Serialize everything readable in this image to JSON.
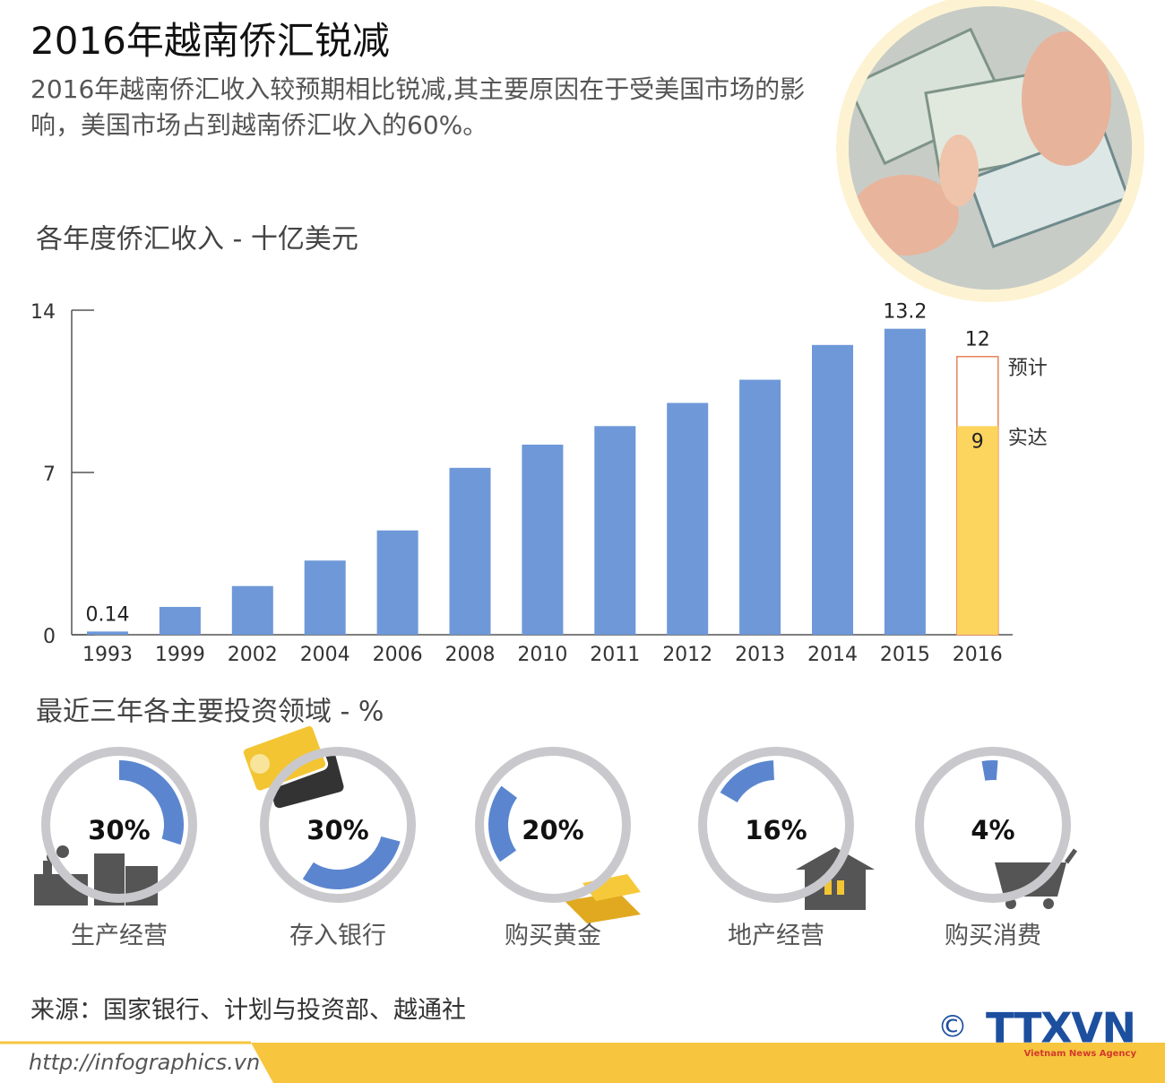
{
  "header": {
    "title": "2016年越南侨汇锐减",
    "subtitle": "2016年越南侨汇收入较预期相比锐减,其主要原因在于受美国市场的影响，美国市场占到越南侨汇收入的60%。"
  },
  "chart_data": [
    {
      "type": "bar",
      "title": "各年度侨汇收入 - 十亿美元",
      "categories": [
        "1993",
        "1999",
        "2002",
        "2004",
        "2006",
        "2008",
        "2010",
        "2011",
        "2012",
        "2013",
        "2014",
        "2015",
        "2016"
      ],
      "series": [
        {
          "color": "#6e98d8",
          "values": [
            0.14,
            1.2,
            2.1,
            3.2,
            4.5,
            7.2,
            8.2,
            9.0,
            10.0,
            11.0,
            12.5,
            13.2,
            null
          ],
          "value_labels": [
            "0.14",
            null,
            null,
            null,
            null,
            null,
            null,
            null,
            null,
            null,
            null,
            "13.2",
            null
          ]
        },
        {
          "name": "实达",
          "color": "#fcd55f",
          "values": [
            null,
            null,
            null,
            null,
            null,
            null,
            null,
            null,
            null,
            null,
            null,
            null,
            9
          ],
          "value_labels": [
            null,
            null,
            null,
            null,
            null,
            null,
            null,
            null,
            null,
            null,
            null,
            null,
            "9"
          ]
        },
        {
          "name": "预计",
          "color": "#e8825a",
          "values": [
            null,
            null,
            null,
            null,
            null,
            null,
            null,
            null,
            null,
            null,
            null,
            null,
            12
          ],
          "value_labels": [
            null,
            null,
            null,
            null,
            null,
            null,
            null,
            null,
            null,
            null,
            null,
            null,
            "12"
          ]
        }
      ],
      "ylim": [
        0,
        14
      ],
      "yticks": [
        0,
        7,
        14
      ]
    },
    {
      "type": "donut",
      "title": "最近三年各主要投资领域 - %",
      "categories": [
        "生产经营",
        "存入银行",
        "购买黄金",
        "地产经营",
        "购买消费"
      ],
      "values": [
        30,
        30,
        20,
        16,
        4
      ],
      "value_labels": [
        "30%",
        "30%",
        "20%",
        "16%",
        "4%"
      ],
      "color": "#5b86cf",
      "ring_color": "#c9c9cd"
    }
  ],
  "footer": {
    "source": "来源：国家银行、计划与投资部、越通社",
    "url": "http://infographics.vn",
    "logo": "TTXVN",
    "logo_subtitle": "Vietnam News Agency",
    "copyright": "©"
  }
}
